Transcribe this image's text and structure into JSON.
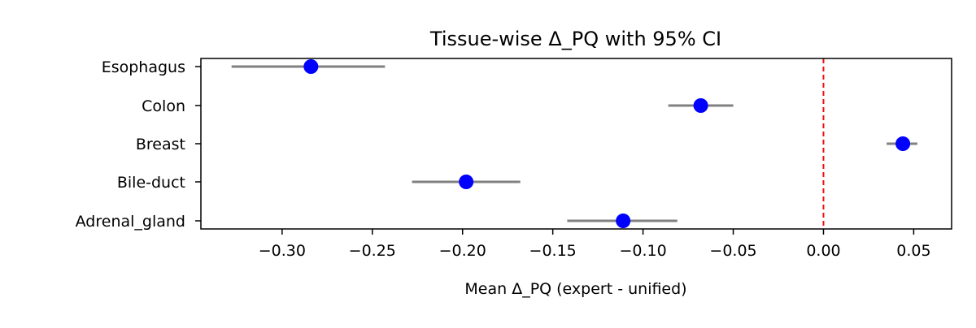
{
  "chart_data": {
    "type": "scatter",
    "title": "Tissue-wise Δ_PQ with 95% CI",
    "xlabel": "Mean Δ_PQ (expert - unified)",
    "ylabel": "",
    "xlim": [
      -0.345,
      0.071
    ],
    "xticks": [
      -0.3,
      -0.25,
      -0.2,
      -0.15,
      -0.1,
      -0.05,
      0.0,
      0.05
    ],
    "xtick_labels": [
      "−0.30",
      "−0.25",
      "−0.20",
      "−0.15",
      "−0.10",
      "−0.05",
      "0.00",
      "0.05"
    ],
    "grid": false,
    "reference_line": {
      "x": 0.0,
      "style": "dashed",
      "color": "#ee1111"
    },
    "marker_color": "#0000ff",
    "errorbar_color": "#808080",
    "categories": [
      "Esophagus",
      "Colon",
      "Breast",
      "Bile-duct",
      "Adrenal_gland"
    ],
    "means": [
      -0.284,
      -0.068,
      0.044,
      -0.198,
      -0.111
    ],
    "ci_low": [
      -0.328,
      -0.086,
      0.035,
      -0.228,
      -0.142
    ],
    "ci_high": [
      -0.243,
      -0.05,
      0.052,
      -0.168,
      -0.081
    ]
  }
}
